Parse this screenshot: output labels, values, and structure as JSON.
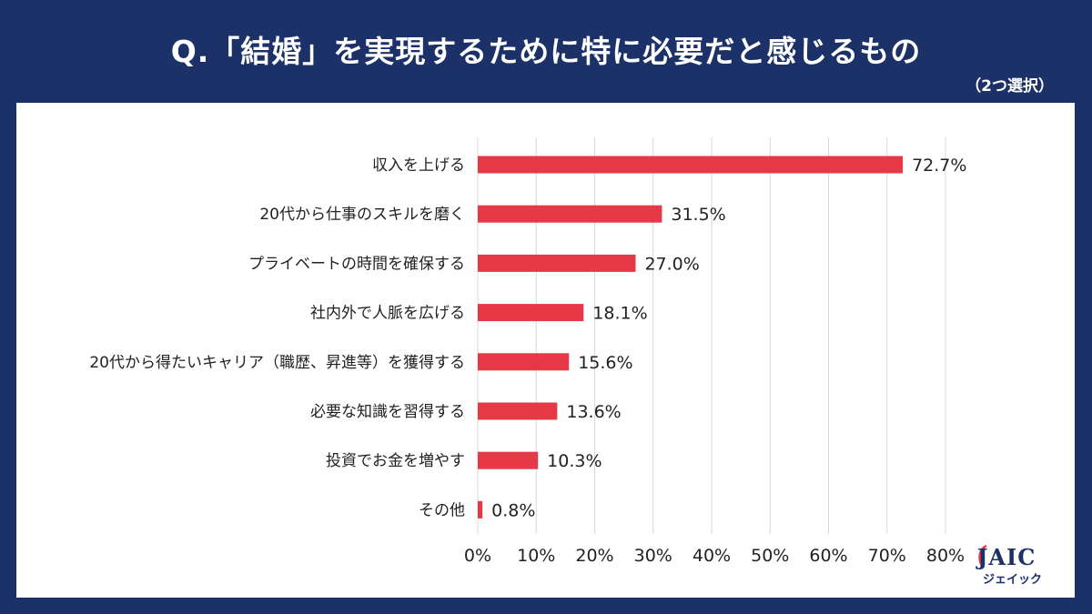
{
  "header": {
    "title": "Q.「結婚」を実現するために特に必要だと感じるもの",
    "subtitle": "（2つ選択）"
  },
  "logo": {
    "name": "JAIC",
    "kana": "ジェイック"
  },
  "colors": {
    "background": "#1b3167",
    "panel": "#ffffff",
    "bar": "#e53947",
    "grid": "#d9d9d9"
  },
  "chart_data": {
    "type": "bar",
    "orientation": "horizontal",
    "categories": [
      "収入を上げる",
      "20代から仕事のスキルを磨く",
      "プライベートの時間を確保する",
      "社内外で人脈を広げる",
      "20代から得たいキャリア（職歴、昇進等）を獲得する",
      "必要な知識を習得する",
      "投資でお金を増やす",
      "その他"
    ],
    "values": [
      72.7,
      31.5,
      27.0,
      18.1,
      15.6,
      13.6,
      10.3,
      0.8
    ],
    "value_labels": [
      "72.7%",
      "31.5%",
      "27.0%",
      "18.1%",
      "15.6%",
      "13.6%",
      "10.3%",
      "0.8%"
    ],
    "xlim": [
      0,
      80
    ],
    "xticks": [
      0,
      10,
      20,
      30,
      40,
      50,
      60,
      70,
      80
    ],
    "xtick_labels": [
      "0%",
      "10%",
      "20%",
      "30%",
      "40%",
      "50%",
      "60%",
      "70%",
      "80%"
    ],
    "grid": true,
    "legend": "none"
  }
}
